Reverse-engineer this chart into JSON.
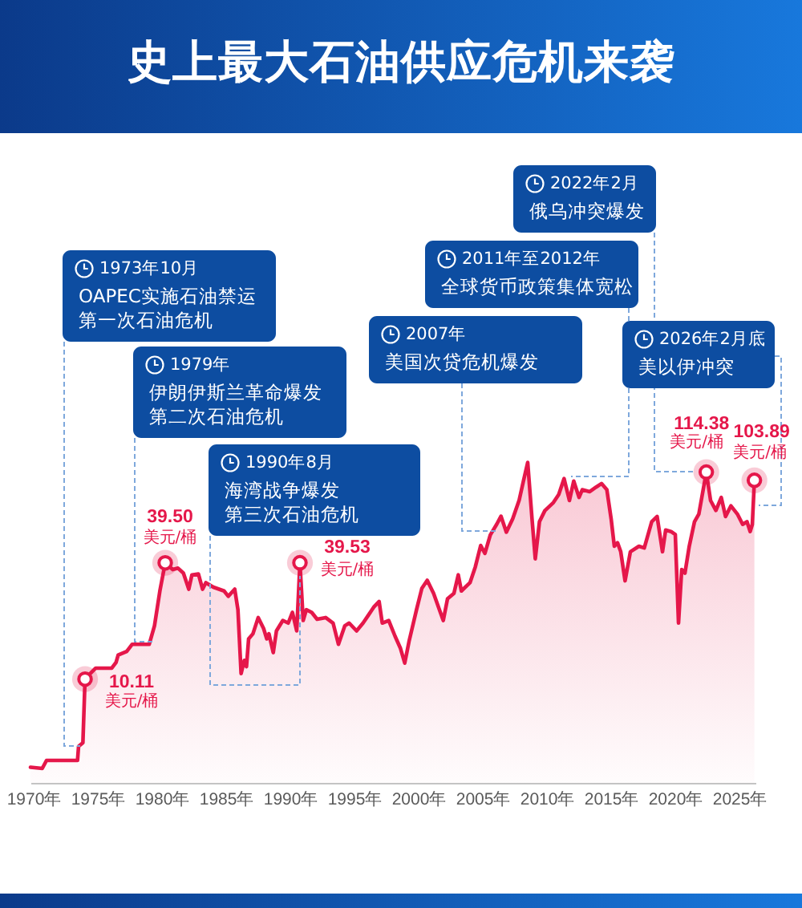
{
  "chart_data": {
    "type": "area",
    "title": "史上最大石油供应危机来袭",
    "x": [
      "1969-10",
      "1970-09",
      "1971-01",
      "1973-06",
      "1973-07",
      "1973-11",
      "1974-01",
      "1974-03",
      "1974-11",
      "1976-02",
      "1976-06",
      "1976-08",
      "1977-04",
      "1977-09",
      "1979-01",
      "1979-06",
      "1979-11",
      "1980-04",
      "1980-11",
      "1981-04",
      "1981-09",
      "1982-02",
      "1982-05",
      "1982-11",
      "1983-03",
      "1983-06",
      "1984-01",
      "1984-11",
      "1985-03",
      "1985-09",
      "1985-12",
      "1986-03",
      "1986-06",
      "1986-08",
      "1986-10",
      "1987-02",
      "1987-07",
      "1987-12",
      "1988-03",
      "1988-05",
      "1988-09",
      "1988-12",
      "1989-06",
      "1989-11",
      "1990-03",
      "1990-07",
      "1990-10",
      "1991-01",
      "1991-04",
      "1991-09",
      "1992-02",
      "1992-10",
      "1993-05",
      "1993-10",
      "1994-04",
      "1994-08",
      "1995-03",
      "1995-09",
      "1996-02",
      "1996-07",
      "1996-12",
      "1997-03",
      "1997-09",
      "1998-03",
      "1998-08",
      "1998-12",
      "1999-04",
      "1999-11",
      "2000-04",
      "2000-09",
      "2001-03",
      "2001-12",
      "2002-04",
      "2002-10",
      "2003-02",
      "2003-05",
      "2004-01",
      "2004-06",
      "2004-11",
      "2005-03",
      "2005-08",
      "2006-02",
      "2006-06",
      "2006-11",
      "2007-05",
      "2007-11",
      "2008-03",
      "2008-07",
      "2008-11",
      "2009-02",
      "2009-06",
      "2009-11",
      "2010-07",
      "2010-12",
      "2011-05",
      "2011-10",
      "2012-02",
      "2012-07",
      "2012-10",
      "2013-05",
      "2013-11",
      "2014-04",
      "2014-09",
      "2015-01",
      "2015-04",
      "2015-07",
      "2015-10",
      "2016-02",
      "2016-07",
      "2017-03",
      "2017-08",
      "2018-03",
      "2018-08",
      "2019-01",
      "2019-04",
      "2019-09",
      "2020-01",
      "2020-04",
      "2020-07",
      "2020-10",
      "2021-02",
      "2021-07",
      "2021-11",
      "2022-06",
      "2022-10",
      "2023-03",
      "2023-08",
      "2023-12",
      "2024-05",
      "2024-11",
      "2025-04",
      "2025-08",
      "2025-11",
      "2026-01",
      "2026-03"
    ],
    "values": [
      3.6,
      3.55,
      3.9,
      3.9,
      4.6,
      4.8,
      10.11,
      10.4,
      11.5,
      11.5,
      12.3,
      13.4,
      14,
      15.2,
      15.2,
      18.9,
      28.4,
      39.5,
      36.5,
      37.1,
      35,
      29,
      34.3,
      34.7,
      29,
      31.3,
      29.7,
      28.4,
      26.7,
      29,
      22.8,
      10.8,
      12.6,
      11.7,
      16.2,
      17.2,
      20.8,
      18.3,
      16.2,
      17.2,
      13.8,
      17.8,
      20.1,
      19.5,
      22.1,
      17.8,
      39.53,
      20.1,
      22.8,
      22.1,
      20.4,
      20.8,
      19.5,
      15.2,
      18.9,
      19.5,
      17.8,
      19.5,
      21.4,
      23.5,
      25.1,
      19.5,
      20.1,
      16.7,
      14.5,
      12.2,
      15.7,
      22.8,
      29.3,
      32.2,
      27.6,
      20.1,
      25.9,
      27.6,
      34.3,
      28.4,
      31.3,
      37.7,
      48.4,
      44.1,
      54.8,
      62.1,
      68.2,
      56.6,
      66.2,
      82.4,
      103,
      128,
      66,
      41.4,
      64,
      72.8,
      80,
      88,
      106,
      82,
      103,
      85,
      93,
      91,
      96,
      100,
      93,
      66,
      48,
      50,
      45,
      32,
      45,
      48,
      47,
      64,
      68,
      45,
      58,
      57,
      55,
      19.5,
      36.5,
      35,
      48,
      64,
      70,
      114.38,
      82,
      73,
      85,
      68,
      77,
      70,
      62,
      64,
      57,
      62,
      103.89
    ],
    "value_labels": [
      null,
      null,
      null,
      null,
      null,
      null,
      "10.11",
      null,
      null,
      null,
      null,
      null,
      null,
      null,
      null,
      null,
      null,
      "39.50",
      null,
      null,
      null,
      null,
      null,
      null,
      null,
      null,
      null,
      null,
      null,
      null,
      null,
      null,
      null,
      null,
      null,
      null,
      null,
      null,
      null,
      null,
      null,
      null,
      null,
      null,
      null,
      null,
      "39.53",
      null,
      null,
      null,
      null,
      null,
      null,
      null,
      null,
      null,
      null,
      null,
      null,
      null,
      null,
      null,
      null,
      null,
      null,
      null,
      null,
      null,
      null,
      null,
      null,
      null,
      null,
      null,
      null,
      null,
      null,
      null,
      null,
      null,
      null,
      null,
      null,
      null,
      null,
      null,
      null,
      null,
      null,
      null,
      null,
      null,
      null,
      null,
      null,
      null,
      null,
      null,
      null,
      null,
      null,
      null,
      null,
      null,
      null,
      null,
      null,
      null,
      null,
      null,
      null,
      null,
      null,
      null,
      null,
      null,
      null,
      null,
      null,
      null,
      null,
      null,
      null,
      "114.38",
      null,
      null,
      null,
      null,
      null,
      null,
      null,
      null,
      null,
      null,
      "103.89"
    ],
    "color": "#e5174a",
    "xlim": [
      "1969-10",
      "2026-04"
    ],
    "xticks": [
      {
        "value": "1970",
        "label": "1970年"
      },
      {
        "value": "1975",
        "label": "1975年"
      },
      {
        "value": "1980",
        "label": "1980年"
      },
      {
        "value": "1985",
        "label": "1985年"
      },
      {
        "value": "1990",
        "label": "1990年"
      },
      {
        "value": "1995",
        "label": "1995年"
      },
      {
        "value": "2000",
        "label": "2000年"
      },
      {
        "value": "2005",
        "label": "2005年"
      },
      {
        "value": "2010",
        "label": "2010年"
      },
      {
        "value": "2015",
        "label": "2015年"
      },
      {
        "value": "2020",
        "label": "2020年"
      },
      {
        "value": "2025",
        "label": "2025年"
      }
    ],
    "log": true,
    "tick_labels": "x",
    "annotations": [
      "1973年10月",
      "OAPEC实施石油禁运",
      "第一次石油危机",
      "1979年",
      "伊朗伊斯兰革命爆发",
      "第二次石油危机",
      "1990年8月",
      "海湾战争爆发",
      "第三次石油危机",
      "2007年",
      "美国次贷危机爆发",
      "2011年至2012年",
      "全球货币政策集体宽松",
      "2022年2月",
      "俄乌冲突爆发",
      "2026年2月底",
      "美以伊冲突",
      {
        "text": "美元/桶",
        "x": "1974-01",
        "y": 10.11
      },
      {
        "text": "美元/桶",
        "x": "1980-04",
        "y": 39.5
      },
      {
        "text": "美元/桶",
        "x": "1990-10",
        "y": 39.53
      },
      {
        "text": "美元/桶",
        "x": "2022-06",
        "y": 114.38
      },
      {
        "text": "美元/桶",
        "x": "2026-03",
        "y": 103.89
      }
    ]
  }
}
